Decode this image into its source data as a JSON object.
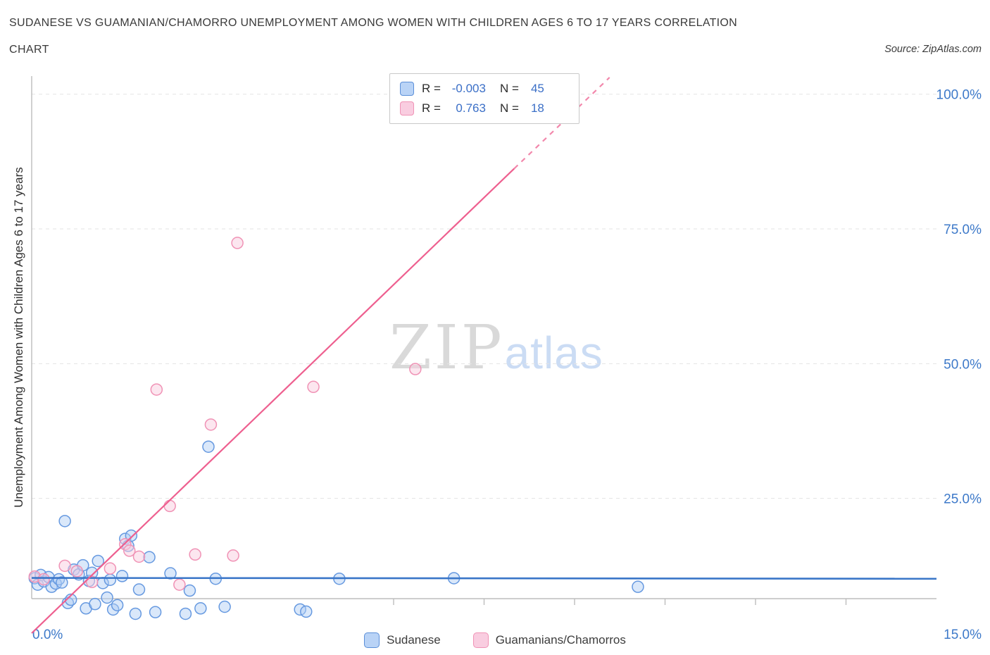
{
  "header": {
    "title": "SUDANESE VS GUAMANIAN/CHAMORRO UNEMPLOYMENT AMONG WOMEN WITH CHILDREN AGES 6 TO 17 YEARS CORRELATION",
    "subtitle": "CHART",
    "source": "Source: ZipAtlas.com"
  },
  "watermark": {
    "zip": "ZIP",
    "atlas": "atlas"
  },
  "legend_box": {
    "rows": [
      {
        "series": "Sudanese",
        "r_label": "R =",
        "r_value": "-0.003",
        "n_label": "N =",
        "n_value": "45"
      },
      {
        "series": "Guamanians/Chamorros",
        "r_label": "R =",
        "r_value": "0.763",
        "n_label": "N =",
        "n_value": "18"
      }
    ]
  },
  "bottom_legend": [
    {
      "label": "Sudanese"
    },
    {
      "label": "Guamanians/Chamorros"
    }
  ],
  "colors": {
    "accent_text_blue": "#3d79c9",
    "blue_point_stroke": "#6699e0",
    "blue_point_fill": "rgba(173,205,245,0.45)",
    "blue_trend": "#3a76c8",
    "pink_point_stroke": "#f092b5",
    "pink_point_fill": "rgba(250,206,223,0.5)",
    "pink_trend": "#ee5f8f"
  },
  "chart_data": {
    "type": "scatter",
    "title": "Sudanese vs Guamanian/Chamorro Unemployment Among Women with Children Ages 6 to 17 years Correlation",
    "xlabel": "",
    "ylabel": "Unemployment Among Women with Children Ages 6 to 17 years",
    "x_range": [
      0,
      15
    ],
    "y_range": [
      0,
      105
    ],
    "grid": "horizontal-dashed",
    "x_min_label": "0.0%",
    "x_max_label": "15.0%",
    "x_minor_ticks": [
      6,
      7.5,
      9,
      10.5,
      12,
      13.5
    ],
    "y_ticks": [
      {
        "v": 25,
        "label": "25.0%"
      },
      {
        "v": 50,
        "label": "50.0%"
      },
      {
        "v": 75,
        "label": "75.0%"
      },
      {
        "v": 100,
        "label": "100.0%"
      }
    ],
    "series": [
      {
        "name": "Sudanese",
        "R": -0.003,
        "N": 45,
        "point_name": "sudanese-point",
        "point_fill": "rgba(173,205,245,0.45)",
        "point_stroke": "#6699e0",
        "trend": {
          "color": "#3a76c8",
          "width": 2.6,
          "x1": 0,
          "y1": 10.25,
          "x2": 15,
          "y2": 10.1
        },
        "points": [
          [
            0.05,
            10.2
          ],
          [
            0.1,
            9.0
          ],
          [
            0.15,
            10.8
          ],
          [
            0.2,
            9.6
          ],
          [
            0.28,
            10.4
          ],
          [
            0.33,
            8.6
          ],
          [
            0.4,
            9.2
          ],
          [
            0.45,
            10.0
          ],
          [
            0.5,
            9.4
          ],
          [
            0.55,
            20.8
          ],
          [
            0.6,
            5.6
          ],
          [
            0.65,
            6.2
          ],
          [
            0.7,
            11.8
          ],
          [
            0.78,
            10.9
          ],
          [
            0.85,
            12.6
          ],
          [
            0.9,
            4.6
          ],
          [
            0.95,
            9.7
          ],
          [
            1.0,
            11.2
          ],
          [
            1.05,
            5.4
          ],
          [
            1.1,
            13.4
          ],
          [
            1.18,
            9.3
          ],
          [
            1.25,
            6.6
          ],
          [
            1.3,
            9.9
          ],
          [
            1.35,
            4.4
          ],
          [
            1.42,
            5.2
          ],
          [
            1.5,
            10.6
          ],
          [
            1.55,
            17.5
          ],
          [
            1.6,
            16.2
          ],
          [
            1.65,
            18.1
          ],
          [
            1.72,
            3.6
          ],
          [
            1.78,
            8.1
          ],
          [
            1.95,
            14.1
          ],
          [
            2.05,
            3.9
          ],
          [
            2.3,
            11.1
          ],
          [
            2.55,
            3.6
          ],
          [
            2.62,
            7.9
          ],
          [
            2.8,
            4.6
          ],
          [
            2.93,
            34.6
          ],
          [
            3.05,
            10.1
          ],
          [
            3.2,
            4.9
          ],
          [
            4.45,
            4.4
          ],
          [
            4.55,
            4.0
          ],
          [
            5.1,
            10.1
          ],
          [
            7.0,
            10.2
          ],
          [
            10.05,
            8.6
          ]
        ]
      },
      {
        "name": "Guamanians/Chamorros",
        "R": 0.763,
        "N": 18,
        "point_name": "guamanian-point",
        "point_fill": "rgba(250,206,223,0.5)",
        "point_stroke": "#f092b5",
        "trend": {
          "color": "#ee5f8f",
          "width": 2.2,
          "x1": 0,
          "y1": 0,
          "x2": 8.0,
          "y2": 86.2,
          "ext": {
            "x": 9.58,
            "y": 103.1,
            "dash": "7 7"
          }
        },
        "points": [
          [
            0.05,
            10.5
          ],
          [
            0.2,
            10.0
          ],
          [
            0.55,
            12.5
          ],
          [
            0.75,
            11.5
          ],
          [
            1.0,
            9.5
          ],
          [
            1.3,
            12.0
          ],
          [
            1.55,
            16.5
          ],
          [
            1.62,
            15.3
          ],
          [
            1.78,
            14.2
          ],
          [
            2.07,
            45.2
          ],
          [
            2.29,
            23.6
          ],
          [
            2.45,
            9.0
          ],
          [
            2.71,
            14.6
          ],
          [
            2.97,
            38.7
          ],
          [
            3.34,
            14.4
          ],
          [
            3.41,
            72.4
          ],
          [
            4.67,
            45.7
          ],
          [
            6.36,
            49.0
          ]
        ]
      }
    ]
  }
}
